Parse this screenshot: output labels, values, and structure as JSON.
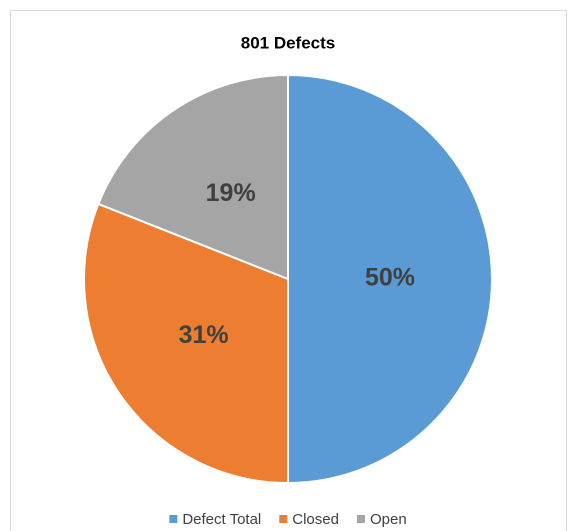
{
  "chart_data": {
    "type": "pie",
    "title": "801 Defects",
    "categories": [
      "Defect Total",
      "Closed",
      "Open"
    ],
    "values": [
      50,
      31,
      19
    ],
    "value_labels": [
      "50%",
      "31%",
      "19%"
    ],
    "colors": [
      "#5b9bd5",
      "#ed7d31",
      "#a5a5a5"
    ],
    "legend": "bottom"
  }
}
